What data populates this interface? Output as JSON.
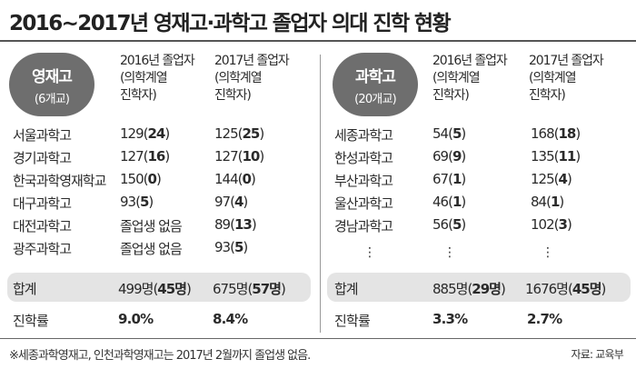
{
  "title": "2016~2017년 영재고·과학고 졸업자 의대 진학 현황",
  "left": {
    "group_name": "영재고",
    "group_count": "(6개교)",
    "col1_header": "2016년 졸업자\n(의학계열\n진학자)",
    "col2_header": "2017년 졸업자\n(의학계열\n진학자)",
    "rows": [
      {
        "name": "서울과학고",
        "y2016": "129",
        "y2016_med": "24",
        "y2017": "125",
        "y2017_med": "25"
      },
      {
        "name": "경기과학고",
        "y2016": "127",
        "y2016_med": "16",
        "y2017": "127",
        "y2017_med": "10"
      },
      {
        "name": "한국과학영재학교",
        "y2016": "150",
        "y2016_med": "0",
        "y2017": "144",
        "y2017_med": "0"
      },
      {
        "name": "대구과학고",
        "y2016": "93",
        "y2016_med": "5",
        "y2017": "97",
        "y2017_med": "4"
      },
      {
        "name": "대전과학고",
        "y2016_text": "졸업생 없음",
        "y2017": "89",
        "y2017_med": "13"
      },
      {
        "name": "광주과학고",
        "y2016_text": "졸업생 없음",
        "y2017": "93",
        "y2017_med": "5"
      }
    ],
    "total_label": "합계",
    "total_2016": "499명",
    "total_2016_med": "45명",
    "total_2017": "675명",
    "total_2017_med": "57명",
    "rate_label": "진학률",
    "rate_2016": "9.0%",
    "rate_2017": "8.4%"
  },
  "right": {
    "group_name": "과학고",
    "group_count": "(20개교)",
    "col1_header": "2016년 졸업자\n(의학계열\n진학자)",
    "col2_header": "2017년 졸업자\n(의학계열\n진학자)",
    "rows": [
      {
        "name": "세종과학고",
        "y2016": "54",
        "y2016_med": "5",
        "y2017": "168",
        "y2017_med": "18"
      },
      {
        "name": "한성과학고",
        "y2016": "69",
        "y2016_med": "9",
        "y2017": "135",
        "y2017_med": "11"
      },
      {
        "name": "부산과학고",
        "y2016": "67",
        "y2016_med": "1",
        "y2017": "125",
        "y2017_med": "4"
      },
      {
        "name": "울산과학고",
        "y2016": "46",
        "y2016_med": "1",
        "y2017": "84",
        "y2017_med": "1"
      },
      {
        "name": "경남과학고",
        "y2016": "56",
        "y2016_med": "5",
        "y2017": "102",
        "y2017_med": "3"
      }
    ],
    "ellipsis": "⋮",
    "total_label": "합계",
    "total_2016": "885명",
    "total_2016_med": "29명",
    "total_2017": "1676명",
    "total_2017_med": "45명",
    "rate_label": "진학률",
    "rate_2016": "3.3%",
    "rate_2017": "2.7%"
  },
  "footnote": "※세종과학영재고, 인천과학영재고는 2017년 2월까지 졸업생 없음.",
  "source": "자료: 교육부"
}
